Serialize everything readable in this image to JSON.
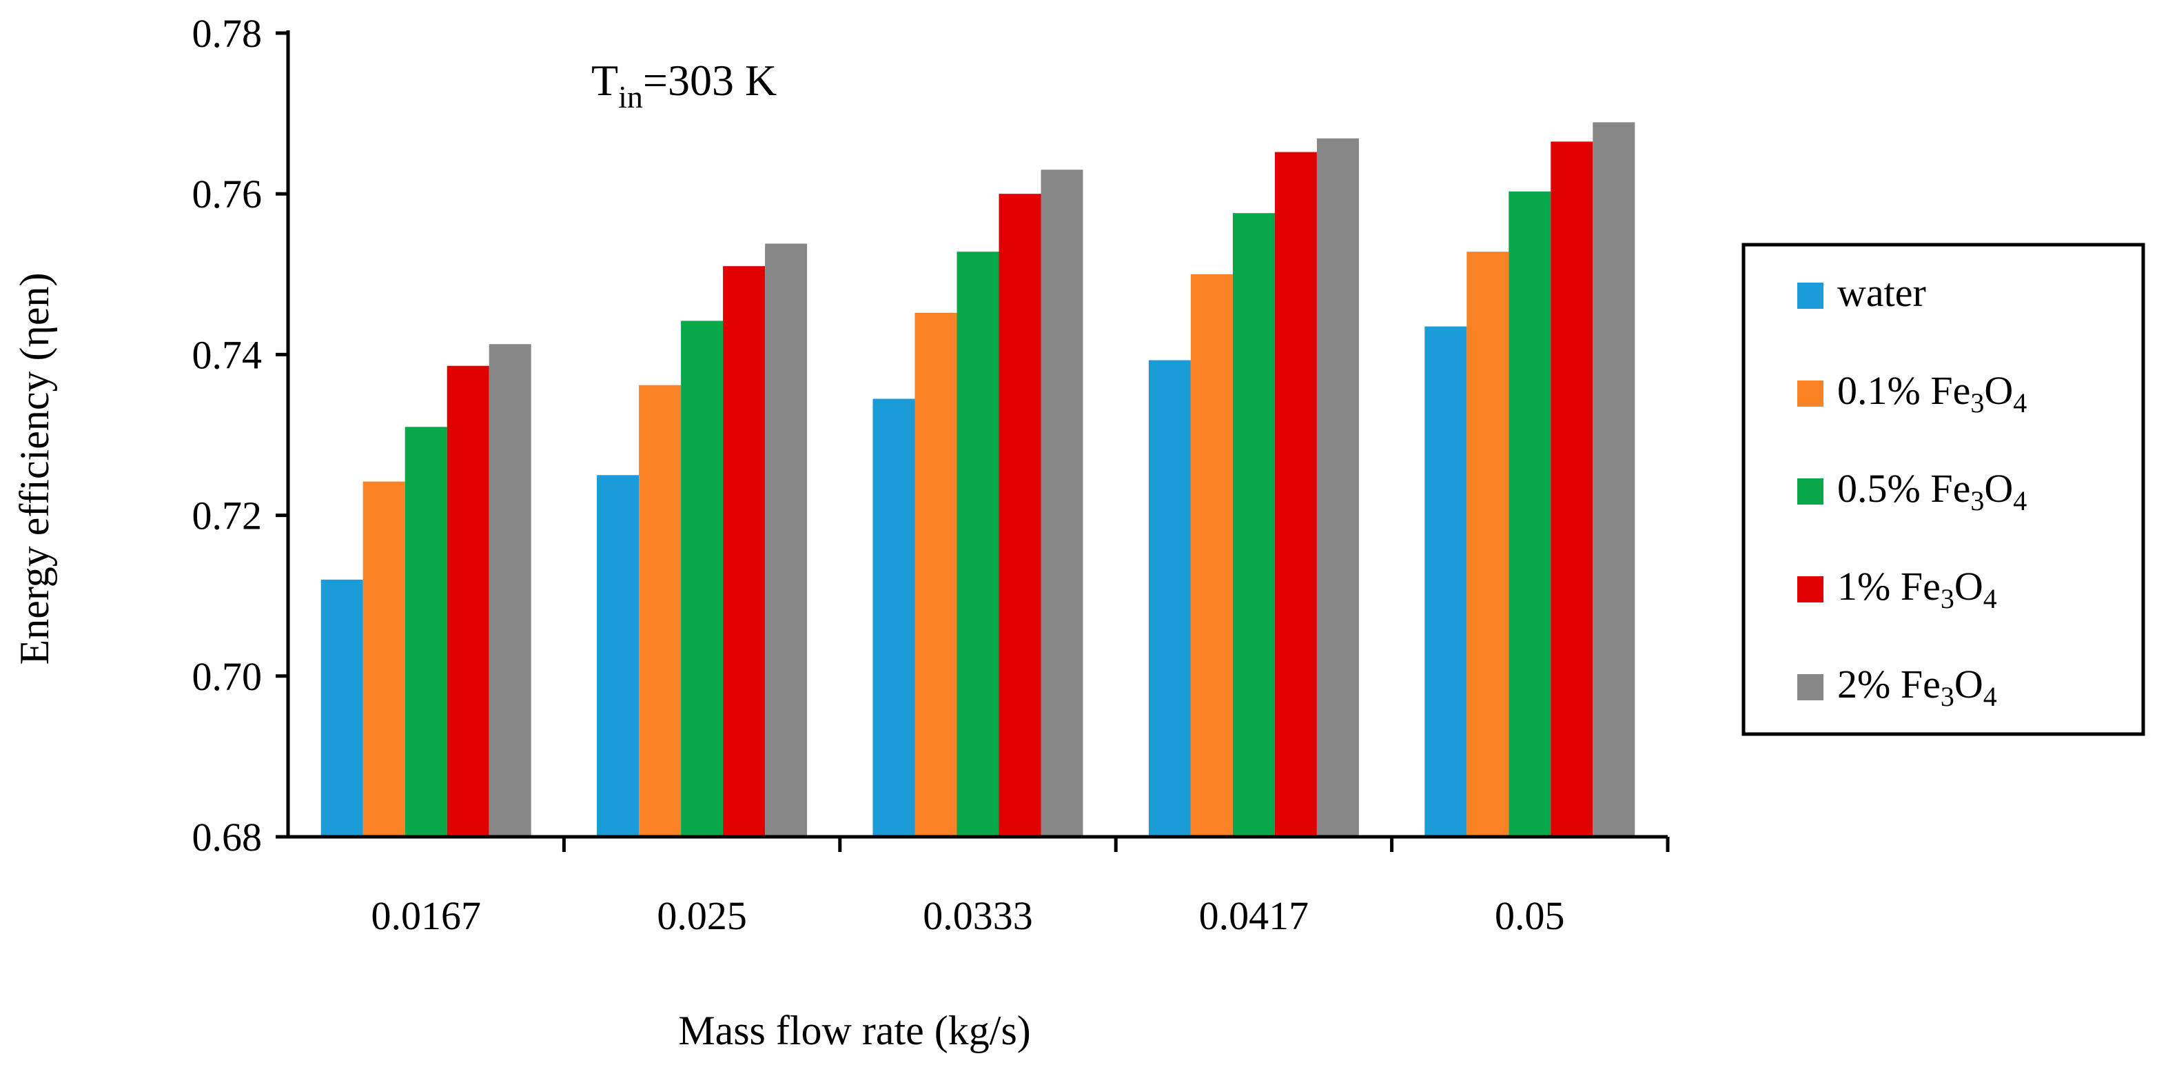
{
  "chart_data": {
    "type": "bar",
    "title": "",
    "annotation": {
      "main": "T",
      "subscript": "in",
      "rest": "=303 K"
    },
    "xlabel": "Mass flow rate (kg/s)",
    "ylabel": "Energy efficiency (ηen)",
    "ylim": [
      0.68,
      0.78
    ],
    "yticks": [
      "0.68",
      "0.70",
      "0.72",
      "0.74",
      "0.76",
      "0.78"
    ],
    "categories": [
      "0.0167",
      "0.025",
      "0.0333",
      "0.0417",
      "0.05"
    ],
    "legend_position": "right",
    "series": [
      {
        "name": "water",
        "legend_label": "water",
        "color": "#1b9bd7",
        "values": [
          0.712,
          0.725,
          0.7345,
          0.7393,
          0.7435
        ]
      },
      {
        "name": "0.1% Fe3O4",
        "legend_label": "0.1% Fe",
        "legend_sub1": "3",
        "legend_mid": "O",
        "legend_sub2": "4",
        "color": "#f98225",
        "values": [
          0.7242,
          0.7362,
          0.7452,
          0.75,
          0.7528
        ]
      },
      {
        "name": "0.5% Fe3O4",
        "legend_label": "0.5% Fe",
        "legend_sub1": "3",
        "legend_mid": "O",
        "legend_sub2": "4",
        "color": "#08a84a",
        "values": [
          0.731,
          0.7442,
          0.7528,
          0.7576,
          0.7603
        ]
      },
      {
        "name": "1% Fe3O4",
        "legend_label": "1% Fe",
        "legend_sub1": "3",
        "legend_mid": "O",
        "legend_sub2": "4",
        "color": "#e00000",
        "values": [
          0.7386,
          0.751,
          0.76,
          0.7652,
          0.7665
        ]
      },
      {
        "name": "2% Fe3O4",
        "legend_label": "2% Fe",
        "legend_sub1": "3",
        "legend_mid": "O",
        "legend_sub2": "4",
        "color": "#878787",
        "values": [
          0.7413,
          0.7538,
          0.763,
          0.7669,
          0.7689
        ]
      }
    ]
  }
}
